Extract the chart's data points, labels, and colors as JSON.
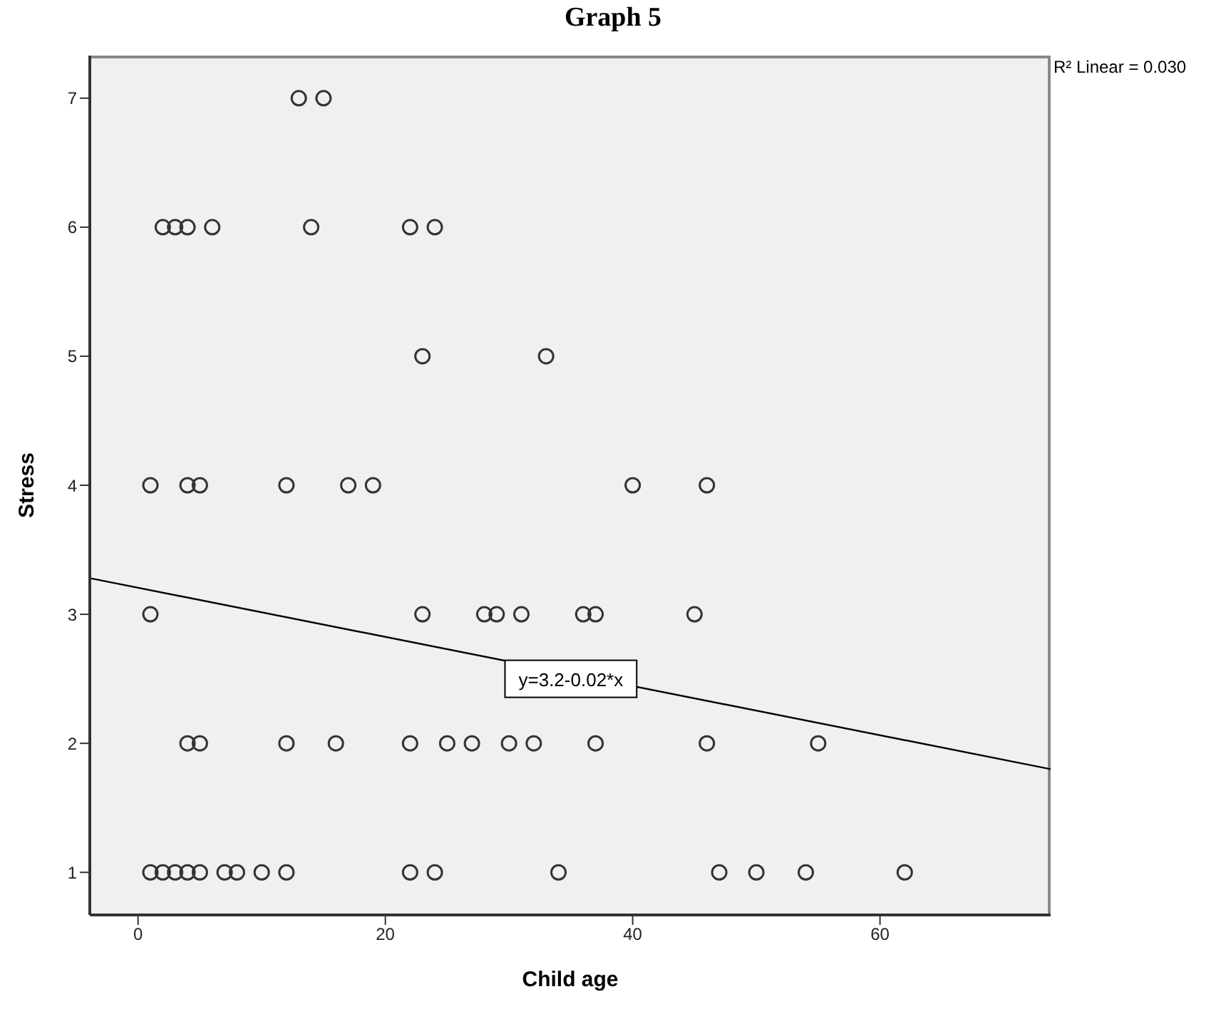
{
  "chart_data": {
    "type": "scatter",
    "title": "Graph 5",
    "xlabel": "Child age",
    "ylabel": "Stress",
    "xlim": [
      -3.9,
      73.8
    ],
    "xticks": [
      0,
      20,
      40,
      60
    ],
    "ylim": [
      0.67,
      7.33
    ],
    "yticks": [
      1,
      2,
      3,
      4,
      5,
      6,
      7
    ],
    "grid": false,
    "series": [
      {
        "marker": "circle",
        "color": "#333333",
        "x": [
          13,
          15,
          2,
          3,
          4,
          6,
          14,
          22,
          24,
          23,
          33,
          1,
          4,
          5,
          12,
          17,
          19,
          40,
          46,
          1,
          23,
          28,
          29,
          31,
          36,
          37,
          45,
          4,
          5,
          12,
          16,
          22,
          25,
          27,
          30,
          32,
          37,
          46,
          55,
          1,
          2,
          3,
          4,
          5,
          7,
          8,
          10,
          12,
          22,
          24,
          34,
          47,
          50,
          54,
          62
        ],
        "values": [
          7,
          7,
          6,
          6,
          6,
          6,
          6,
          6,
          6,
          5,
          5,
          4,
          4,
          4,
          4,
          4,
          4,
          4,
          4,
          3,
          3,
          3,
          3,
          3,
          3,
          3,
          3,
          2,
          2,
          2,
          2,
          2,
          2,
          2,
          2,
          2,
          2,
          2,
          2,
          1,
          1,
          1,
          1,
          1,
          1,
          1,
          1,
          1,
          1,
          1,
          1,
          1,
          1,
          1,
          1
        ]
      },
      {
        "type": "line",
        "color": "#000000",
        "x": [
          -3.9,
          73.8
        ],
        "values": [
          3.28,
          1.8
        ]
      }
    ],
    "annotations": [
      "R² Linear = 0.030",
      {
        "text": "y=3.2-0.02*x",
        "x": 35,
        "y": 2.5
      }
    ]
  }
}
